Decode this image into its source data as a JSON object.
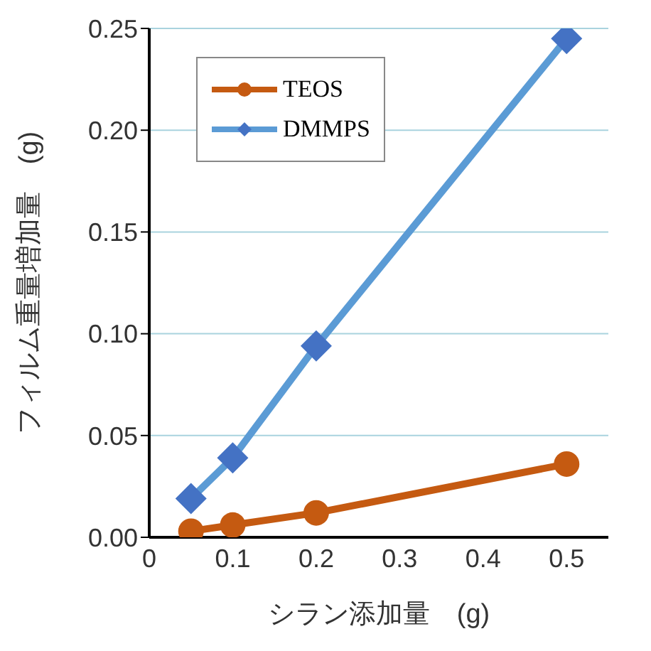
{
  "chart_data": {
    "type": "line",
    "xlabel": "シラン添加量　(g)",
    "ylabel": "フィルム重量増加量　(g)",
    "x": [
      0.05,
      0.1,
      0.2,
      0.5
    ],
    "series": [
      {
        "name": "TEOS",
        "color": "#c55a11",
        "values": [
          0.003,
          0.006,
          0.012,
          0.036
        ],
        "marker": "circle"
      },
      {
        "name": "DMMPS",
        "color": "#5b9bd5",
        "values": [
          0.019,
          0.039,
          0.094,
          0.245
        ],
        "marker": "diamond"
      }
    ],
    "xlim": [
      0,
      0.55
    ],
    "xticks": [
      0,
      0.1,
      0.2,
      0.3,
      0.4,
      0.5
    ],
    "ylim": [
      0,
      0.25
    ],
    "yticks": [
      {
        "value": 0,
        "label": "0.00"
      },
      {
        "value": 0.05,
        "label": "0.05"
      },
      {
        "value": 0.1,
        "label": "0.10"
      },
      {
        "value": 0.15,
        "label": "0.15"
      },
      {
        "value": 0.2,
        "label": "0.20"
      },
      {
        "value": 0.25,
        "label": "0.25"
      }
    ],
    "grid": "y",
    "legend": "top left"
  }
}
